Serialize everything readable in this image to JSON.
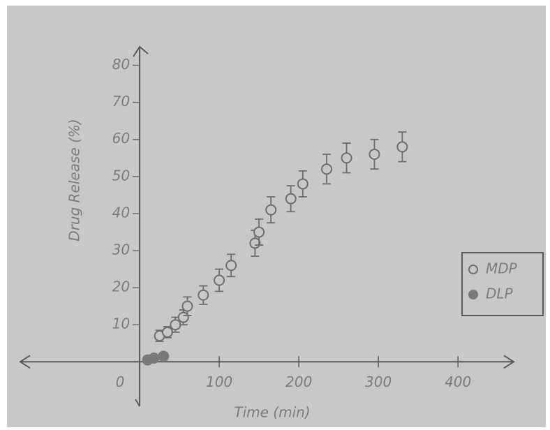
{
  "chart_data": {
    "type": "scatter",
    "xlabel": "Time (min)",
    "ylabel": "Drug Release (%)",
    "xlim": [
      -150,
      470
    ],
    "ylim": [
      -12,
      85
    ],
    "xticks": [
      0,
      100,
      200,
      300,
      400
    ],
    "yticks": [
      10,
      20,
      30,
      40,
      50,
      60,
      70,
      80
    ],
    "legend": "right",
    "grid": false,
    "series": [
      {
        "name": "MDP",
        "color": "#6e6e6e",
        "marker": "open",
        "x": [
          25,
          35,
          45,
          55,
          60,
          80,
          100,
          115,
          145,
          150,
          165,
          190,
          205,
          235,
          260,
          295,
          330
        ],
        "values": [
          7,
          8,
          10,
          12,
          15,
          18,
          22,
          26,
          32,
          35,
          41,
          44,
          48,
          52,
          55,
          56,
          58
        ],
        "errors": [
          1.5,
          1.5,
          2,
          2,
          2.5,
          2.5,
          3,
          3,
          3.5,
          3.5,
          3.5,
          3.5,
          3.5,
          4,
          4,
          4,
          4
        ]
      },
      {
        "name": "DLP",
        "color": "#7a7a7a",
        "marker": "filled",
        "x": [
          10,
          18,
          30
        ],
        "values": [
          0.5,
          1,
          1.5
        ]
      }
    ]
  }
}
